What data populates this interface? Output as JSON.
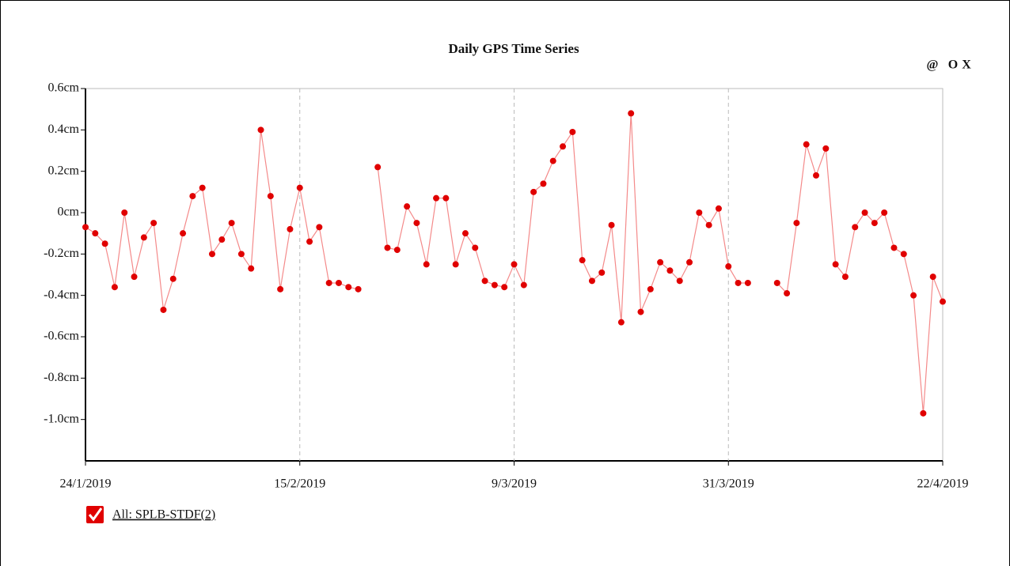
{
  "toolbar_icons": [
    "@",
    "O",
    "X"
  ],
  "chart_data": {
    "type": "line",
    "title": "Daily GPS Time Series",
    "x": [
      "2019-01-24",
      "2019-01-25",
      "2019-01-26",
      "2019-01-27",
      "2019-01-28",
      "2019-01-29",
      "2019-01-30",
      "2019-01-31",
      "2019-02-01",
      "2019-02-02",
      "2019-02-03",
      "2019-02-04",
      "2019-02-05",
      "2019-02-06",
      "2019-02-07",
      "2019-02-08",
      "2019-02-09",
      "2019-02-10",
      "2019-02-11",
      "2019-02-12",
      "2019-02-13",
      "2019-02-14",
      "2019-02-15",
      "2019-02-16",
      "2019-02-17",
      "2019-02-18",
      "2019-02-19",
      "2019-02-20",
      "2019-02-21",
      "2019-02-22",
      "2019-02-23",
      "2019-02-24",
      "2019-02-25",
      "2019-02-26",
      "2019-02-27",
      "2019-02-28",
      "2019-03-01",
      "2019-03-02",
      "2019-03-03",
      "2019-03-04",
      "2019-03-05",
      "2019-03-06",
      "2019-03-07",
      "2019-03-08",
      "2019-03-09",
      "2019-03-10",
      "2019-03-11",
      "2019-03-12",
      "2019-03-13",
      "2019-03-14",
      "2019-03-15",
      "2019-03-16",
      "2019-03-17",
      "2019-03-18",
      "2019-03-19",
      "2019-03-20",
      "2019-03-21",
      "2019-03-22",
      "2019-03-23",
      "2019-03-24",
      "2019-03-25",
      "2019-03-26",
      "2019-03-27",
      "2019-03-28",
      "2019-03-29",
      "2019-03-30",
      "2019-03-31",
      "2019-04-01",
      "2019-04-02",
      "2019-04-03",
      "2019-04-04",
      "2019-04-05",
      "2019-04-06",
      "2019-04-07",
      "2019-04-08",
      "2019-04-09",
      "2019-04-10",
      "2019-04-11",
      "2019-04-12",
      "2019-04-13",
      "2019-04-14",
      "2019-04-15",
      "2019-04-16",
      "2019-04-17",
      "2019-04-18",
      "2019-04-19",
      "2019-04-20",
      "2019-04-21",
      "2019-04-22"
    ],
    "series": [
      {
        "name": "All: SPLB-STDF(2)",
        "color": "#e00000",
        "line_color": "#f48a8a",
        "checked": true,
        "values": [
          -0.07,
          -0.1,
          -0.15,
          -0.36,
          0.0,
          -0.31,
          -0.12,
          -0.05,
          -0.47,
          -0.32,
          -0.1,
          0.08,
          0.12,
          -0.2,
          -0.13,
          -0.05,
          -0.2,
          -0.27,
          0.4,
          0.08,
          -0.37,
          -0.08,
          0.12,
          -0.14,
          -0.07,
          -0.34,
          -0.34,
          -0.36,
          -0.37,
          null,
          0.22,
          -0.17,
          -0.18,
          0.03,
          -0.05,
          -0.25,
          0.07,
          0.07,
          -0.25,
          -0.1,
          -0.17,
          -0.33,
          -0.35,
          -0.36,
          -0.25,
          -0.35,
          0.1,
          0.14,
          0.25,
          0.32,
          0.39,
          -0.23,
          -0.33,
          -0.29,
          -0.06,
          -0.53,
          0.48,
          -0.48,
          -0.37,
          -0.24,
          -0.28,
          -0.33,
          -0.24,
          0.0,
          -0.06,
          0.02,
          -0.26,
          -0.34,
          -0.34,
          null,
          null,
          -0.34,
          -0.39,
          -0.05,
          0.33,
          0.18,
          0.31,
          -0.25,
          -0.31,
          -0.07,
          0.0,
          -0.05,
          0.0,
          -0.17,
          -0.2,
          -0.4,
          -0.97,
          -0.31,
          -0.43
        ]
      }
    ],
    "xlim": [
      "2019-01-24",
      "2019-04-22"
    ],
    "xticks": [
      {
        "value": "2019-01-24",
        "label": "24/1/2019"
      },
      {
        "value": "2019-02-15",
        "label": "15/2/2019"
      },
      {
        "value": "2019-03-09",
        "label": "9/3/2019"
      },
      {
        "value": "2019-03-31",
        "label": "31/3/2019"
      },
      {
        "value": "2019-04-22",
        "label": "22/4/2019"
      }
    ],
    "ylim": [
      -1.2,
      0.6
    ],
    "yticks": [
      {
        "value": 0.6,
        "label": "0.6cm"
      },
      {
        "value": 0.4,
        "label": "0.4cm"
      },
      {
        "value": 0.2,
        "label": "0.2cm"
      },
      {
        "value": 0,
        "label": "0cm"
      },
      {
        "value": -0.2,
        "label": "-0.2cm"
      },
      {
        "value": -0.4,
        "label": "-0.4cm"
      },
      {
        "value": -0.6,
        "label": "-0.6cm"
      },
      {
        "value": -0.8,
        "label": "-0.8cm"
      },
      {
        "value": -1.0,
        "label": "-1.0cm"
      }
    ],
    "xgrid": true
  }
}
